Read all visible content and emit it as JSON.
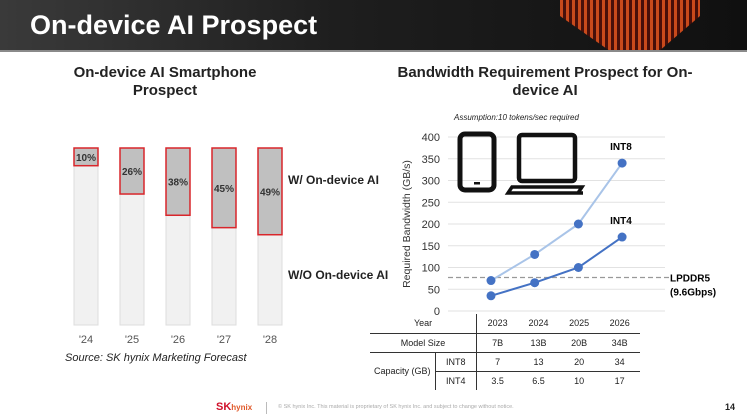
{
  "header": {
    "title": "On-device AI Prospect"
  },
  "chart_data": [
    {
      "type": "bar",
      "stacked": true,
      "title": "On-device AI Smartphone Prospect",
      "categories": [
        "'24",
        "'25",
        "'26",
        "'27",
        "'28"
      ],
      "series": [
        {
          "name": "W/ On-device AI",
          "values": [
            10,
            26,
            38,
            45,
            49
          ],
          "labels": [
            "10%",
            "26%",
            "38%",
            "45%",
            "49%"
          ],
          "color": "#c0c0c0",
          "border": "#d9262b"
        },
        {
          "name": "W/O On-device AI",
          "values": [
            90,
            74,
            62,
            55,
            51
          ],
          "color": "#f1f1f1"
        }
      ],
      "ylim": [
        0,
        100
      ],
      "source": "Source: SK hynix Marketing Forecast"
    },
    {
      "type": "line",
      "title": "Bandwidth Requirement Prospect for On-device AI",
      "annotation": "Assumption:10 tokens/sec required",
      "ylabel": "Required Bandwidth (GB/s)",
      "ylim": [
        0,
        400
      ],
      "yticks": [
        0,
        50,
        100,
        150,
        200,
        250,
        300,
        350,
        400
      ],
      "x": [
        "2023",
        "2024",
        "2025",
        "2026"
      ],
      "series": [
        {
          "name": "INT8",
          "values": [
            70,
            130,
            200,
            340
          ],
          "color": "#a9c4e8"
        },
        {
          "name": "INT4",
          "values": [
            35,
            65,
            100,
            170
          ],
          "color": "#4472c4"
        }
      ],
      "reference_line": {
        "label": "LPDDR5",
        "sublabel": "(9.6Gbps)",
        "value": 77
      },
      "grid": true,
      "icons": [
        "smartphone-icon",
        "laptop-icon"
      ]
    }
  ],
  "table": {
    "year_label": "Year",
    "years": [
      "2023",
      "2024",
      "2025",
      "2026"
    ],
    "model_size_label": "Model Size",
    "model_sizes": [
      "7B",
      "13B",
      "20B",
      "34B"
    ],
    "capacity_label": "Capacity (GB)",
    "int8_label": "INT8",
    "int8": [
      "7",
      "13",
      "20",
      "34"
    ],
    "int4_label": "INT4",
    "int4": [
      "3.5",
      "6.5",
      "10",
      "17"
    ]
  },
  "footer": {
    "logo_sk": "SK",
    "logo_hynix": "hynix",
    "notice": "© SK hynix Inc. This material is proprietary of SK hynix Inc. and subject to change without notice.",
    "page": "14"
  }
}
